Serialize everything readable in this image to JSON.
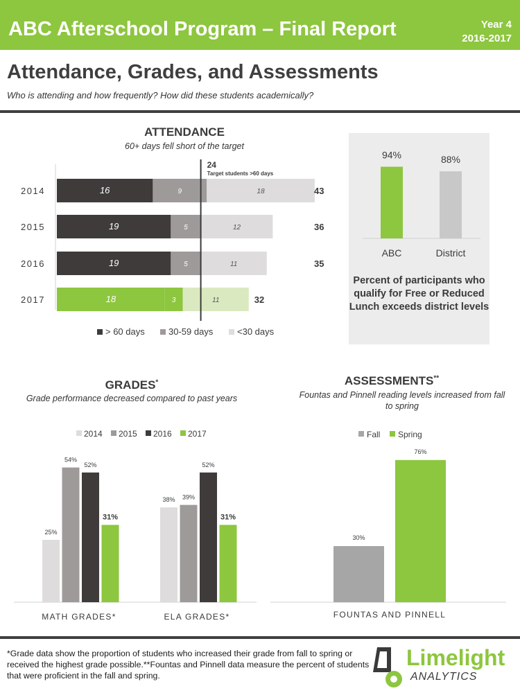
{
  "header": {
    "title": "ABC Afterschool Program – Final Report",
    "year_label": "Year 4",
    "year_range": "2016-2017"
  },
  "section": {
    "title": "Attendance, Grades, and Assessments",
    "subtitle": "Who is attending and how frequently? How did these students academically?"
  },
  "colors": {
    "green": "#8dc63f",
    "dark": "#3f3b3b",
    "mid": "#9f9a9a",
    "light": "#dedcdc",
    "green_light": "#dbe9c0"
  },
  "attendance": {
    "title": "ATTENDANCE",
    "subtitle": "60+ days fell short of the target"
  },
  "lunch": {
    "text": "Percent of participants who  qualify for Free or Reduced Lunch exceeds district levels"
  },
  "grades": {
    "title": "GRADES",
    "title_mark": "*",
    "subtitle": "Grade performance decreased compared to past years"
  },
  "assessments": {
    "title": "ASSESSMENTS",
    "title_mark": "**",
    "subtitle": "Fountas and Pinnell reading levels increased from fall to spring"
  },
  "footnote": "*Grade data show the proportion of students who increased their grade from fall to spring or received the highest grade possible.**Fountas and Pinnell data measure the percent of students that were proficient in the fall and spring.",
  "logo": {
    "word": "Limelight",
    "sub": "ANALYTICS"
  },
  "chart_data": [
    {
      "type": "bar",
      "orientation": "horizontal",
      "stacked": true,
      "categories": [
        "2014",
        "2015",
        "2016",
        "2017"
      ],
      "series": [
        {
          "name": "> 60 days",
          "values": [
            16,
            19,
            19,
            18
          ]
        },
        {
          "name": "30-59 days",
          "values": [
            9,
            5,
            5,
            3
          ]
        },
        {
          "name": "<30 days",
          "values": [
            18,
            12,
            11,
            11
          ]
        }
      ],
      "totals": [
        43,
        36,
        35,
        32
      ],
      "target": {
        "value": 24,
        "label": "Target students >60 days"
      },
      "legend": "bottom"
    },
    {
      "type": "bar",
      "categories": [
        "ABC",
        "District"
      ],
      "values": [
        94,
        88
      ],
      "value_labels": [
        "94%",
        "88%"
      ]
    },
    {
      "type": "bar",
      "categories": [
        "MATH GRADES*",
        "ELA GRADES*"
      ],
      "series": [
        {
          "name": "2014",
          "values": [
            25,
            38
          ]
        },
        {
          "name": "2015",
          "values": [
            54,
            39
          ]
        },
        {
          "name": "2016",
          "values": [
            52,
            52
          ]
        },
        {
          "name": "2017",
          "values": [
            31,
            31
          ]
        }
      ],
      "legend": "top"
    },
    {
      "type": "bar",
      "categories": [
        "FOUNTAS AND PINNELL"
      ],
      "series": [
        {
          "name": "Fall",
          "values": [
            30
          ]
        },
        {
          "name": "Spring",
          "values": [
            76
          ]
        }
      ],
      "legend": "top"
    }
  ]
}
